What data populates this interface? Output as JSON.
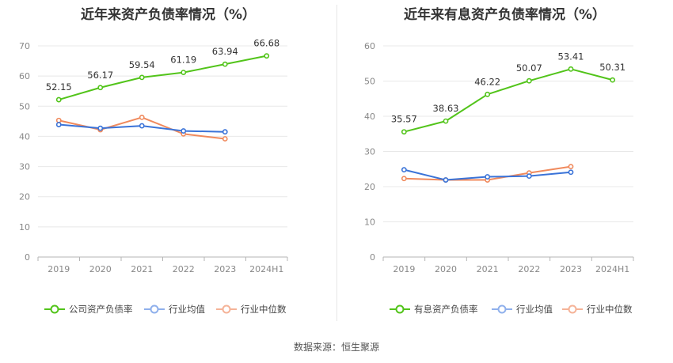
{
  "source": "数据来源：恒生聚源",
  "chart_data": [
    {
      "type": "line",
      "title": "近年来资产负债率情况（%）",
      "categories": [
        "2019",
        "2020",
        "2021",
        "2022",
        "2023",
        "2024H1"
      ],
      "ylim": [
        0,
        70
      ],
      "yticks": [
        0,
        10,
        20,
        30,
        40,
        50,
        60,
        70
      ],
      "grid": true,
      "legend_position": "bottom",
      "series": [
        {
          "name": "公司资产负债率",
          "color": "#52c41a",
          "values": [
            52.15,
            56.17,
            59.54,
            61.19,
            63.94,
            66.68
          ],
          "labels": [
            "52.15",
            "56.17",
            "59.54",
            "61.19",
            "63.94",
            "66.68"
          ]
        },
        {
          "name": "行业均值",
          "color": "#3a73d8",
          "values": [
            43.9,
            42.7,
            43.5,
            41.8,
            41.5,
            null
          ],
          "labels": []
        },
        {
          "name": "行业中位数",
          "color": "#f08a5d",
          "values": [
            45.3,
            42.2,
            46.3,
            40.8,
            39.2,
            null
          ],
          "labels": []
        }
      ]
    },
    {
      "type": "line",
      "title": "近年来有息资产负债率情况（%）",
      "categories": [
        "2019",
        "2020",
        "2021",
        "2022",
        "2023",
        "2024H1"
      ],
      "ylim": [
        0,
        60
      ],
      "yticks": [
        0,
        10,
        20,
        30,
        40,
        50,
        60
      ],
      "grid": true,
      "legend_position": "bottom",
      "series": [
        {
          "name": "有息资产负债率",
          "color": "#52c41a",
          "values": [
            35.57,
            38.63,
            46.22,
            50.07,
            53.41,
            50.31
          ],
          "labels": [
            "35.57",
            "38.63",
            "46.22",
            "50.07",
            "53.41",
            "50.31"
          ]
        },
        {
          "name": "行业均值",
          "color": "#3a73d8",
          "values": [
            24.8,
            21.9,
            22.8,
            23.0,
            24.1,
            null
          ],
          "labels": []
        },
        {
          "name": "行业中位数",
          "color": "#f08a5d",
          "values": [
            22.3,
            21.9,
            21.9,
            23.9,
            25.7,
            null
          ],
          "labels": []
        }
      ]
    }
  ]
}
